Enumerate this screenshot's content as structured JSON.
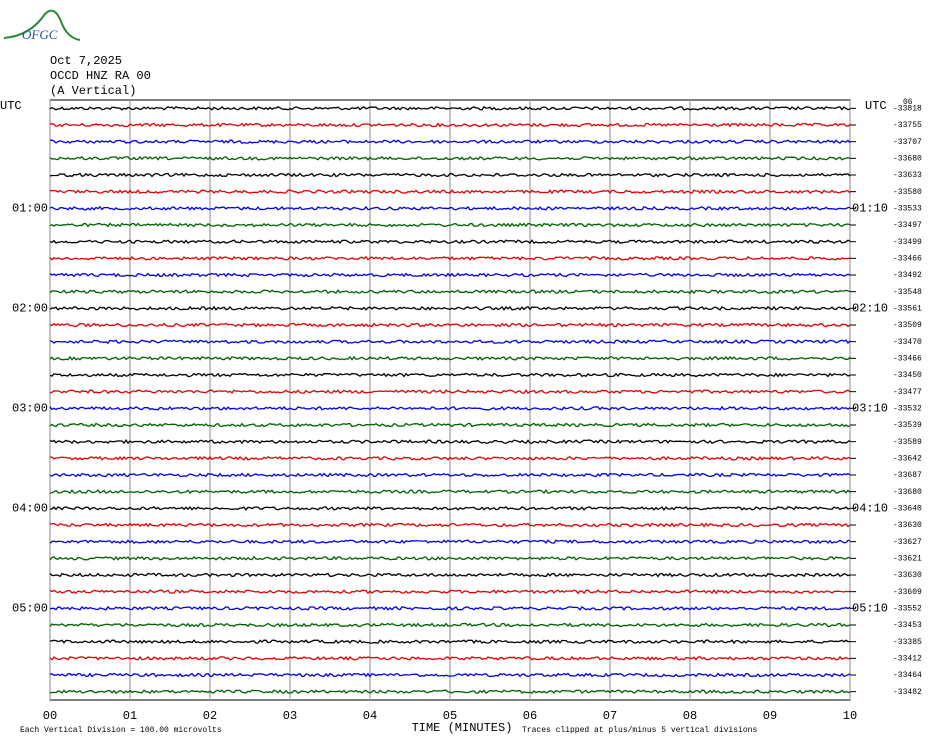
{
  "logo": "OFGC",
  "header": [
    "Oct 7,2025",
    "OCCD HNZ RA 00",
    "(A Vertical)"
  ],
  "left_title": "UTC",
  "right_title": "UTC",
  "right_top": "06",
  "left_labels": [
    "01:00",
    "02:00",
    "03:00",
    "04:00",
    "05:00"
  ],
  "right_labels": [
    "01:10",
    "02:10",
    "03:10",
    "04:10",
    "05:10"
  ],
  "trace_labels": [
    "-33818",
    "-33755",
    "-33707",
    "-33680",
    "-33633",
    "-33580",
    "-33533",
    "-33497",
    "-33499",
    "-33466",
    "-33492",
    "-33548",
    "-33561",
    "-33509",
    "-33470",
    "-33466",
    "-33450",
    "-33477",
    "-33532",
    "-33539",
    "-33589",
    "-33642",
    "-33687",
    "-33680",
    "-33640",
    "-33630",
    "-33627",
    "-33621",
    "-33630",
    "-33609",
    "-33552",
    "-33453",
    "-33385",
    "-33412",
    "-33464",
    "-33482"
  ],
  "x_ticks": [
    "00",
    "01",
    "02",
    "03",
    "04",
    "05",
    "06",
    "07",
    "08",
    "09",
    "10"
  ],
  "x_title": "TIME (MINUTES)",
  "footer_left": "Each Vertical Division =  100.00 microvolts",
  "footer_right": "Traces clipped at plus/minus 5 vertical divisions",
  "trace_colors": [
    "#000000",
    "#e00000",
    "#0000e0",
    "#006000"
  ]
}
